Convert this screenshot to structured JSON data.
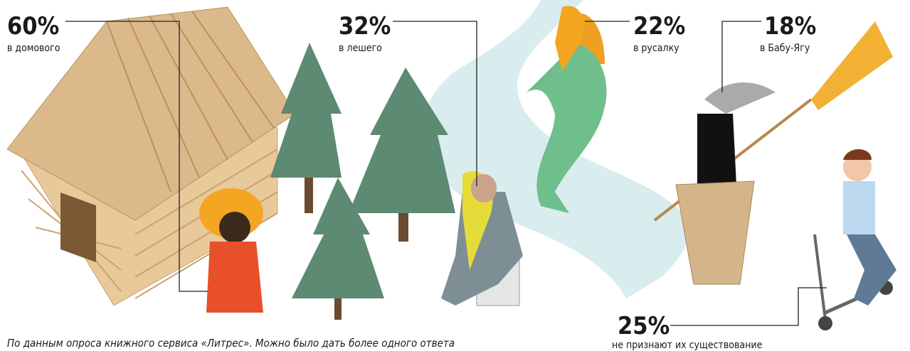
{
  "items": [
    {
      "value": "60%",
      "label": "в домового"
    },
    {
      "value": "32%",
      "label": "в лешего"
    },
    {
      "value": "22%",
      "label": "в русалку"
    },
    {
      "value": "18%",
      "label": "в Бабу-Ягу"
    },
    {
      "value": "25%",
      "label": "не признают их существование"
    }
  ],
  "footnote": "По данным опроса книжного сервиса «Литрес». Можно было дать более одного ответа"
}
